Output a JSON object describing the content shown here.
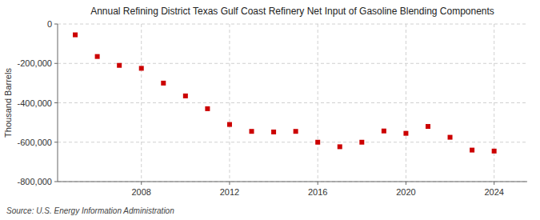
{
  "chart_data": {
    "type": "scatter",
    "title": "Annual Refining District Texas Gulf Coast Refinery Net Input of Gasoline Blending Components",
    "y_label": "Thousand Barrels",
    "source": "Source: U.S. Energy Information Administration",
    "x": [
      2005,
      2006,
      2007,
      2008,
      2009,
      2010,
      2011,
      2012,
      2013,
      2014,
      2015,
      2016,
      2017,
      2018,
      2019,
      2020,
      2021,
      2022,
      2023,
      2024
    ],
    "values": [
      -55000,
      -165000,
      -210000,
      -225000,
      -300000,
      -365000,
      -430000,
      -510000,
      -545000,
      -548000,
      -545000,
      -600000,
      -623000,
      -600000,
      -543000,
      -555000,
      -520000,
      -575000,
      -640000,
      -645000
    ],
    "color": "#cc0000",
    "marker": "square",
    "xlim": [
      2004.2,
      2025.5
    ],
    "xticks": [
      2008,
      2012,
      2016,
      2020,
      2024
    ],
    "ylim": [
      -800000,
      0
    ],
    "yticks": [
      0,
      {
        "value": -200000,
        "label": "-200,000"
      },
      {
        "value": -400000,
        "label": "-400,000"
      },
      {
        "value": -600000,
        "label": "-600,000"
      },
      {
        "value": -800000,
        "label": "-800,000"
      }
    ],
    "grid": true
  }
}
